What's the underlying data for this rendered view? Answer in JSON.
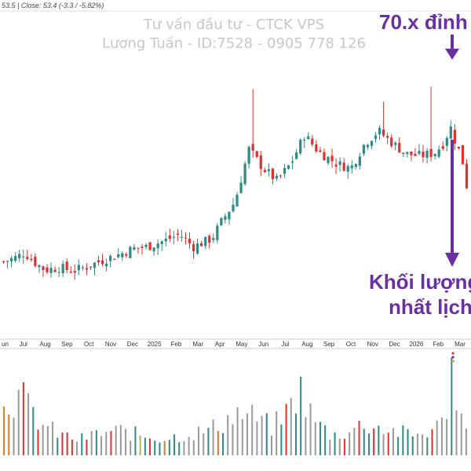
{
  "header": {
    "ohlc_text": "53.5 | Close: 53.4 (-3.3 / -5.82%)"
  },
  "watermark": {
    "line1": "Tư vấn đầu tư - CTCK VPS",
    "line2": "Lương Tuấn - ID:7528 - 0905 778 126"
  },
  "annotations": {
    "top_label": "70.x đỉnh",
    "bottom_line1": "Khối lượng",
    "bottom_line2": "nhất lịch"
  },
  "colors": {
    "up": "#2e8b87",
    "down": "#e03030",
    "arrow": "#6a2fa0",
    "vol_neutral": "#9a9a9a",
    "vol_low": "#a8b84a",
    "vol_orange": "#e07820"
  },
  "chart_data": {
    "type": "candlestick",
    "x_tick_labels": [
      "un",
      "Jul",
      "Aug",
      "Sep",
      "Oct",
      "Nov",
      "Dec",
      "2025",
      "Feb",
      "Mar",
      "Apr",
      "May",
      "Jun",
      "Jul",
      "Aug",
      "Sep",
      "Oct",
      "Nov",
      "Dec",
      "2026",
      "Feb",
      "Mar"
    ],
    "last_close": 53.4,
    "change": -3.3,
    "change_pct": -5.82,
    "grid": false,
    "price_close_path": [
      {
        "t": 0,
        "v": 44.2
      },
      {
        "t": 0.03,
        "v": 44.8
      },
      {
        "t": 0.045,
        "v": 45.3
      },
      {
        "t": 0.07,
        "v": 44.0
      },
      {
        "t": 0.09,
        "v": 43.2
      },
      {
        "t": 0.12,
        "v": 43.5
      },
      {
        "t": 0.15,
        "v": 43.1
      },
      {
        "t": 0.18,
        "v": 43.6
      },
      {
        "t": 0.21,
        "v": 44.3
      },
      {
        "t": 0.25,
        "v": 45.1
      },
      {
        "t": 0.28,
        "v": 45.8
      },
      {
        "t": 0.31,
        "v": 46.0
      },
      {
        "t": 0.35,
        "v": 46.8
      },
      {
        "t": 0.38,
        "v": 47.5
      },
      {
        "t": 0.41,
        "v": 46.0
      },
      {
        "t": 0.45,
        "v": 47.0
      },
      {
        "t": 0.47,
        "v": 49.0
      },
      {
        "t": 0.5,
        "v": 51.5
      },
      {
        "t": 0.53,
        "v": 57.8
      },
      {
        "t": 0.56,
        "v": 55.5
      },
      {
        "t": 0.59,
        "v": 54.0
      },
      {
        "t": 0.62,
        "v": 56.0
      },
      {
        "t": 0.65,
        "v": 59.5
      },
      {
        "t": 0.68,
        "v": 57.5
      },
      {
        "t": 0.72,
        "v": 56.0
      },
      {
        "t": 0.75,
        "v": 55.5
      },
      {
        "t": 0.78,
        "v": 58.5
      },
      {
        "t": 0.81,
        "v": 60.0
      },
      {
        "t": 0.84,
        "v": 58.5
      },
      {
        "t": 0.87,
        "v": 57.2
      },
      {
        "t": 0.9,
        "v": 57.0
      },
      {
        "t": 0.93,
        "v": 57.3
      },
      {
        "t": 0.95,
        "v": 58.5
      },
      {
        "t": 0.965,
        "v": 60.5
      },
      {
        "t": 0.975,
        "v": 58.8
      },
      {
        "t": 0.99,
        "v": 56.7
      },
      {
        "t": 1.0,
        "v": 53.4
      }
    ],
    "peak_high": 70,
    "volume_profile": [
      {
        "t": 0,
        "v": 0.85
      },
      {
        "t": 0.04,
        "v": 0.8
      },
      {
        "t": 0.08,
        "v": 0.45
      },
      {
        "t": 0.12,
        "v": 0.3
      },
      {
        "t": 0.16,
        "v": 0.22
      },
      {
        "t": 0.2,
        "v": 0.3
      },
      {
        "t": 0.25,
        "v": 0.35
      },
      {
        "t": 0.3,
        "v": 0.28
      },
      {
        "t": 0.35,
        "v": 0.24
      },
      {
        "t": 0.4,
        "v": 0.3
      },
      {
        "t": 0.44,
        "v": 0.35
      },
      {
        "t": 0.47,
        "v": 0.45
      },
      {
        "t": 0.5,
        "v": 0.6
      },
      {
        "t": 0.54,
        "v": 0.55
      },
      {
        "t": 0.58,
        "v": 0.4
      },
      {
        "t": 0.61,
        "v": 0.6
      },
      {
        "t": 0.64,
        "v": 0.95
      },
      {
        "t": 0.67,
        "v": 0.5
      },
      {
        "t": 0.71,
        "v": 0.28
      },
      {
        "t": 0.75,
        "v": 0.35
      },
      {
        "t": 0.78,
        "v": 0.45
      },
      {
        "t": 0.82,
        "v": 0.38
      },
      {
        "t": 0.86,
        "v": 0.32
      },
      {
        "t": 0.89,
        "v": 0.28
      },
      {
        "t": 0.92,
        "v": 0.35
      },
      {
        "t": 0.95,
        "v": 0.45
      },
      {
        "t": 0.965,
        "v": 1.0
      },
      {
        "t": 0.98,
        "v": 0.55
      },
      {
        "t": 1.0,
        "v": 0.5
      }
    ],
    "volume_peak_t": 0.965
  }
}
